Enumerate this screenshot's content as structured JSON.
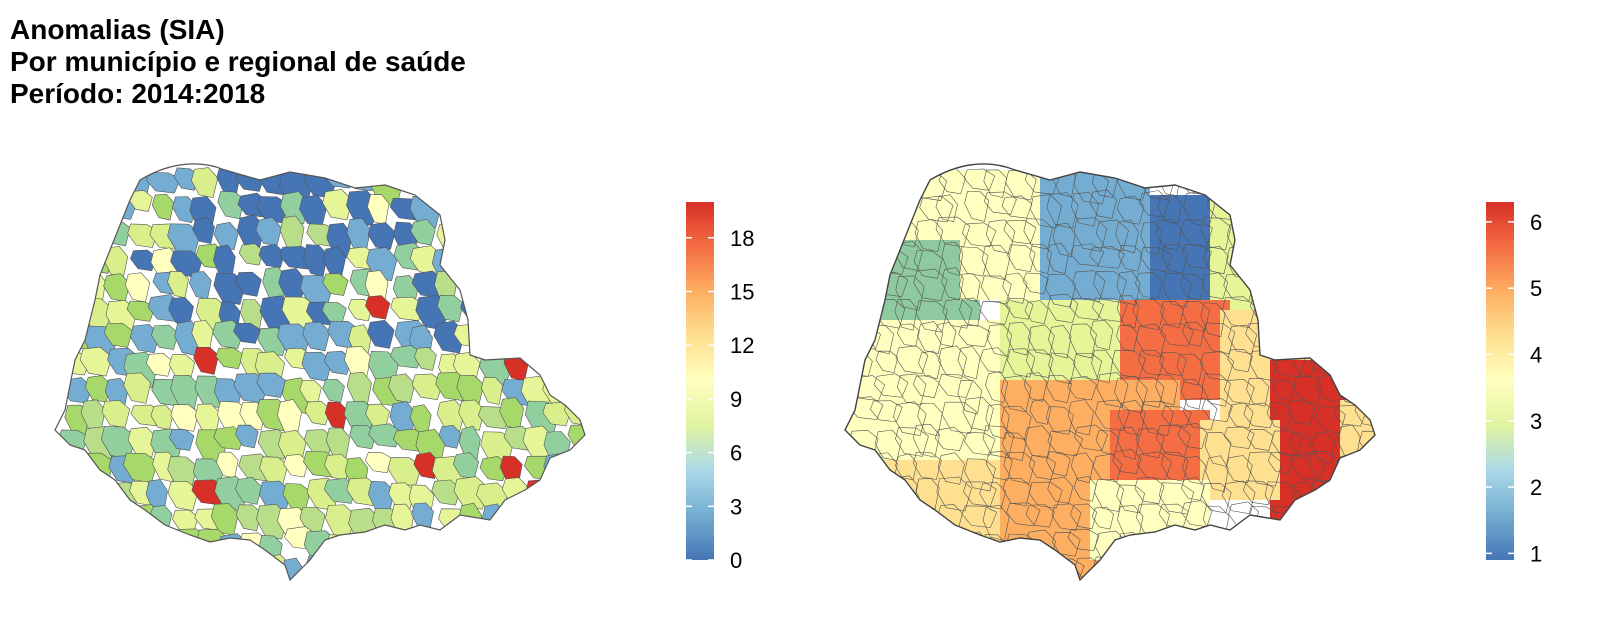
{
  "title": {
    "line1": "Anomalias (SIA)",
    "line2": "Por município e regional de saúde",
    "line3": "Período: 2014:2018"
  },
  "maps": [
    {
      "id": "municipio",
      "legend_ticks": [
        "0",
        "3",
        "6",
        "9",
        "12",
        "15",
        "18"
      ],
      "legend_values": [
        0,
        3,
        6,
        9,
        12,
        15,
        18
      ],
      "legend_range": [
        0,
        20
      ],
      "colors": [
        "#4575b4",
        "#74add1",
        "#abd9e9",
        "#e0f3a0",
        "#ffffbf",
        "#fee090",
        "#fdae61",
        "#f46d43",
        "#d73027"
      ]
    },
    {
      "id": "regional",
      "legend_ticks": [
        "1",
        "2",
        "3",
        "4",
        "5",
        "6"
      ],
      "legend_values": [
        1,
        2,
        3,
        4,
        5,
        6
      ],
      "legend_range": [
        0.9,
        6.3
      ],
      "colors": [
        "#4575b4",
        "#74add1",
        "#abd9e9",
        "#e0f3a0",
        "#ffffbf",
        "#fee090",
        "#fdae61",
        "#f46d43",
        "#d73027"
      ]
    }
  ]
}
